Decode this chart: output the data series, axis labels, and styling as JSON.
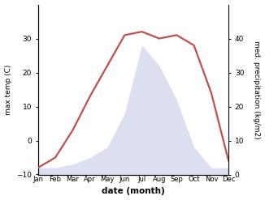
{
  "months": [
    "Jan",
    "Feb",
    "Mar",
    "Apr",
    "May",
    "Jun",
    "Jul",
    "Aug",
    "Sep",
    "Oct",
    "Nov",
    "Dec"
  ],
  "temp": [
    -8,
    -5,
    3,
    13,
    22,
    31,
    32,
    30,
    31,
    28,
    14,
    -6
  ],
  "precip": [
    2,
    2,
    3,
    5,
    8,
    18,
    38,
    32,
    22,
    8,
    2,
    2
  ],
  "temp_ylim": [
    -10,
    40
  ],
  "precip_ylim": [
    0,
    50
  ],
  "temp_yticks": [
    -10,
    0,
    10,
    20,
    30
  ],
  "precip_yticks": [
    0,
    10,
    20,
    30,
    40
  ],
  "line_color": "#c0504d",
  "fill_color": "#c8cfe8",
  "fill_alpha": 0.65,
  "xlabel": "date (month)",
  "ylabel_left": "max temp (C)",
  "ylabel_right": "med. precipitation (kg/m2)",
  "background_color": "#ffffff",
  "line_width": 1.6
}
